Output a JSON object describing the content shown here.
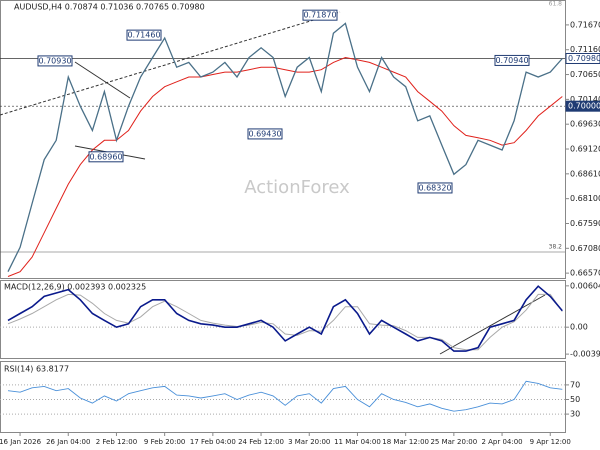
{
  "chart_data": {
    "type": "line",
    "header": "AUDUSD,H4  0.70874 0.71036 0.70765 0.70980",
    "watermark": "ActionForex",
    "categories": [
      null,
      "16 Jan 2026",
      null,
      null,
      null,
      "26 Jan 04:00",
      null,
      null,
      null,
      "2 Feb 12:00",
      null,
      null,
      null,
      "9 Feb 20:00",
      null,
      null,
      null,
      "17 Feb 04:00",
      null,
      null,
      null,
      "24 Feb 12:00",
      null,
      null,
      null,
      "3 Mar 20:00",
      null,
      null,
      null,
      "11 Mar 04:00",
      null,
      null,
      null,
      "18 Mar 12:00",
      null,
      null,
      null,
      "25 Mar 20:00",
      null,
      null,
      null,
      "2 Apr 04:00",
      null,
      null,
      null,
      "9 Apr 12:00",
      null
    ],
    "price": {
      "color": "#4a7088",
      "values": [
        0.666,
        0.671,
        0.68,
        0.689,
        0.693,
        0.706,
        0.7,
        0.695,
        0.703,
        0.693,
        0.7,
        0.706,
        0.71,
        0.714,
        0.708,
        0.709,
        0.706,
        0.707,
        0.709,
        0.706,
        0.71,
        0.712,
        0.71,
        0.702,
        0.708,
        0.71,
        0.703,
        0.715,
        0.717,
        0.708,
        0.703,
        0.71,
        0.706,
        0.704,
        0.697,
        0.698,
        0.692,
        0.686,
        0.688,
        0.693,
        0.692,
        0.691,
        0.697,
        0.707,
        0.706,
        0.707,
        0.7098
      ]
    },
    "ma": {
      "color": "#e0211b",
      "values": [
        0.665,
        0.666,
        0.669,
        0.674,
        0.679,
        0.684,
        0.688,
        0.691,
        0.693,
        0.693,
        0.695,
        0.699,
        0.702,
        0.704,
        0.705,
        0.706,
        0.706,
        0.7065,
        0.707,
        0.707,
        0.7075,
        0.708,
        0.708,
        0.7075,
        0.707,
        0.707,
        0.7075,
        0.709,
        0.71,
        0.7095,
        0.709,
        0.708,
        0.707,
        0.706,
        0.703,
        0.701,
        0.699,
        0.696,
        0.694,
        0.6935,
        0.693,
        0.692,
        0.6925,
        0.695,
        0.698,
        0.7,
        0.702
      ]
    },
    "ylim": [
      0.6647,
      0.7212
    ],
    "yticks": [
      {
        "value": 0.7167,
        "label": "0.71670"
      },
      {
        "value": 0.7116,
        "label": "0.71160"
      },
      {
        "value": 0.7065,
        "label": "0.70650"
      },
      {
        "value": 0.7014,
        "label": "0.70140"
      },
      {
        "value": 0.6963,
        "label": "0.69630"
      },
      {
        "value": 0.6912,
        "label": "0.69120"
      },
      {
        "value": 0.6861,
        "label": "0.68610"
      },
      {
        "value": 0.681,
        "label": "0.68100"
      },
      {
        "value": 0.6759,
        "label": "0.67590"
      },
      {
        "value": 0.6708,
        "label": "0.67080"
      },
      {
        "value": 0.6657,
        "label": "0.66570"
      }
    ],
    "levels": [
      {
        "value": 0.7098,
        "label": "0.70980"
      },
      {
        "value": 0.7,
        "label": "0.70000"
      }
    ],
    "annotations": [
      {
        "value": 0.7093,
        "label": "0.70930"
      },
      {
        "value": 0.7146,
        "label": "0.71460"
      },
      {
        "value": 0.7187,
        "label": "0.71870"
      },
      {
        "value": 0.6896,
        "label": "0.68960"
      },
      {
        "value": 0.6943,
        "label": "0.69430"
      },
      {
        "value": 0.6832,
        "label": "0.68320"
      },
      {
        "value": 0.7094,
        "label": "0.70940"
      }
    ],
    "fib_labels": [
      "61.8",
      "38.2"
    ],
    "macd": {
      "header": "MACD(12,26,9) 0.002393 0.002325",
      "line": {
        "color": "#0a1a8c",
        "values": [
          0.001,
          0.002,
          0.003,
          0.0045,
          0.005,
          0.0055,
          0.004,
          0.002,
          0.001,
          0.0,
          0.0005,
          0.003,
          0.004,
          0.004,
          0.002,
          0.001,
          0.0005,
          0.0003,
          0.0,
          0.0,
          0.0005,
          0.001,
          0.0,
          -0.002,
          -0.001,
          0.0,
          -0.001,
          0.003,
          0.004,
          0.002,
          -0.001,
          0.001,
          0.0,
          -0.001,
          -0.002,
          -0.0015,
          -0.002,
          -0.0035,
          -0.0035,
          -0.003,
          0.0,
          0.0005,
          0.001,
          0.004,
          0.006,
          0.0045,
          0.0024
        ]
      },
      "signal": {
        "color": "#aaaaaa",
        "values": [
          0.0005,
          0.0012,
          0.002,
          0.003,
          0.004,
          0.0048,
          0.0047,
          0.0035,
          0.002,
          0.001,
          0.0006,
          0.0015,
          0.003,
          0.0038,
          0.003,
          0.002,
          0.001,
          0.0006,
          0.0003,
          0.0001,
          0.0003,
          0.0007,
          0.0005,
          -0.001,
          -0.0012,
          -0.0005,
          -0.0006,
          0.001,
          0.003,
          0.003,
          0.0005,
          0.0003,
          0.0002,
          -0.0005,
          -0.0015,
          -0.0015,
          -0.0018,
          -0.003,
          -0.0033,
          -0.0033,
          -0.0015,
          0.0,
          0.0008,
          0.0025,
          0.0048,
          0.0048,
          0.0023
        ]
      },
      "ylim": [
        -0.004362,
        0.006611
      ],
      "yticks": [
        0.006048,
        {
          "value": 0,
          "label": "0.00"
        },
        -0.00394
      ]
    },
    "rsi": {
      "header": "RSI(14) 63.8177",
      "color": "#4a90d9",
      "values": [
        62,
        60,
        66,
        68,
        62,
        65,
        52,
        45,
        55,
        48,
        58,
        62,
        66,
        68,
        56,
        55,
        52,
        55,
        58,
        50,
        56,
        60,
        55,
        42,
        55,
        58,
        45,
        65,
        68,
        50,
        40,
        58,
        50,
        46,
        40,
        44,
        38,
        34,
        36,
        40,
        45,
        44,
        50,
        75,
        72,
        66,
        64
      ],
      "ylim": [
        0,
        100
      ],
      "yticks": [
        70,
        50,
        30
      ]
    }
  }
}
